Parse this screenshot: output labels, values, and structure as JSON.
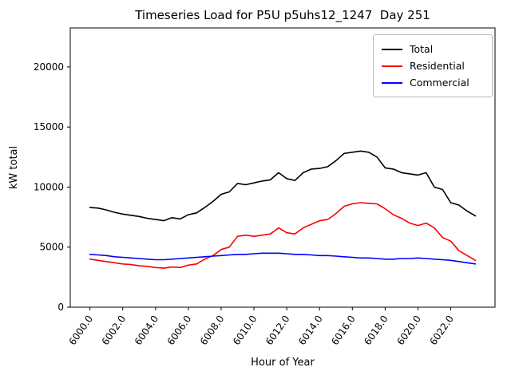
{
  "chart_data": {
    "type": "line",
    "title": "Timeseries Load for P5U p5uhs12_1247  Day 251",
    "xlabel": "Hour of Year",
    "ylabel": "kW total",
    "xlim": [
      5998.8,
      6024.7
    ],
    "ylim": [
      0,
      23250
    ],
    "grid": false,
    "legend_position": "upper right",
    "x_tick_values": [
      6000,
      6002,
      6004,
      6006,
      6008,
      6010,
      6012,
      6014,
      6016,
      6018,
      6020,
      6022
    ],
    "x_tick_labels": [
      "6000.0",
      "6002.0",
      "6004.0",
      "6006.0",
      "6008.0",
      "6010.0",
      "6012.0",
      "6014.0",
      "6016.0",
      "6018.0",
      "6020.0",
      "6022.0"
    ],
    "y_tick_values": [
      0,
      5000,
      10000,
      15000,
      20000
    ],
    "y_tick_labels": [
      "0",
      "5000",
      "10000",
      "15000",
      "20000"
    ],
    "x": [
      6000.0,
      6000.5,
      6001.0,
      6001.5,
      6002.0,
      6002.5,
      6003.0,
      6003.5,
      6004.0,
      6004.5,
      6005.0,
      6005.5,
      6006.0,
      6006.5,
      6007.0,
      6007.5,
      6008.0,
      6008.5,
      6009.0,
      6009.5,
      6010.0,
      6010.5,
      6011.0,
      6011.5,
      6012.0,
      6012.5,
      6013.0,
      6013.5,
      6014.0,
      6014.5,
      6015.0,
      6015.5,
      6016.0,
      6016.5,
      6017.0,
      6017.5,
      6018.0,
      6018.5,
      6019.0,
      6019.5,
      6020.0,
      6020.5,
      6021.0,
      6021.5,
      6022.0,
      6022.5,
      6023.0,
      6023.5
    ],
    "series": [
      {
        "name": "Total",
        "color": "#000000",
        "values": [
          8300,
          8250,
          8100,
          7900,
          7750,
          7650,
          7550,
          7400,
          7300,
          7200,
          7450,
          7350,
          7700,
          7850,
          8300,
          8800,
          9400,
          9600,
          10300,
          10200,
          10350,
          10500,
          10600,
          11200,
          10700,
          10550,
          11200,
          11500,
          11550,
          11700,
          12200,
          12800,
          12900,
          13000,
          12900,
          12500,
          11600,
          11500,
          11200,
          11100,
          11000,
          11200,
          10000,
          9800,
          8700,
          8500,
          8000,
          7600
        ]
      },
      {
        "name": "Residential",
        "color": "#ff0000",
        "values": [
          4000,
          3900,
          3800,
          3700,
          3600,
          3550,
          3450,
          3400,
          3300,
          3250,
          3350,
          3300,
          3500,
          3600,
          4000,
          4300,
          4800,
          5000,
          5900,
          6000,
          5900,
          6000,
          6100,
          6600,
          6200,
          6100,
          6600,
          6900,
          7200,
          7300,
          7800,
          8400,
          8600,
          8700,
          8650,
          8600,
          8200,
          7700,
          7400,
          7000,
          6800,
          7000,
          6600,
          5800,
          5500,
          4700,
          4300,
          3900
        ]
      },
      {
        "name": "Commercial",
        "color": "#0000ff",
        "values": [
          4400,
          4350,
          4300,
          4200,
          4150,
          4100,
          4050,
          4000,
          3950,
          3950,
          4000,
          4050,
          4100,
          4150,
          4200,
          4250,
          4300,
          4350,
          4400,
          4400,
          4450,
          4500,
          4500,
          4500,
          4450,
          4400,
          4400,
          4350,
          4300,
          4300,
          4250,
          4200,
          4150,
          4100,
          4100,
          4050,
          4000,
          4000,
          4050,
          4050,
          4100,
          4050,
          4000,
          3950,
          3900,
          3800,
          3700,
          3600
        ]
      }
    ]
  }
}
